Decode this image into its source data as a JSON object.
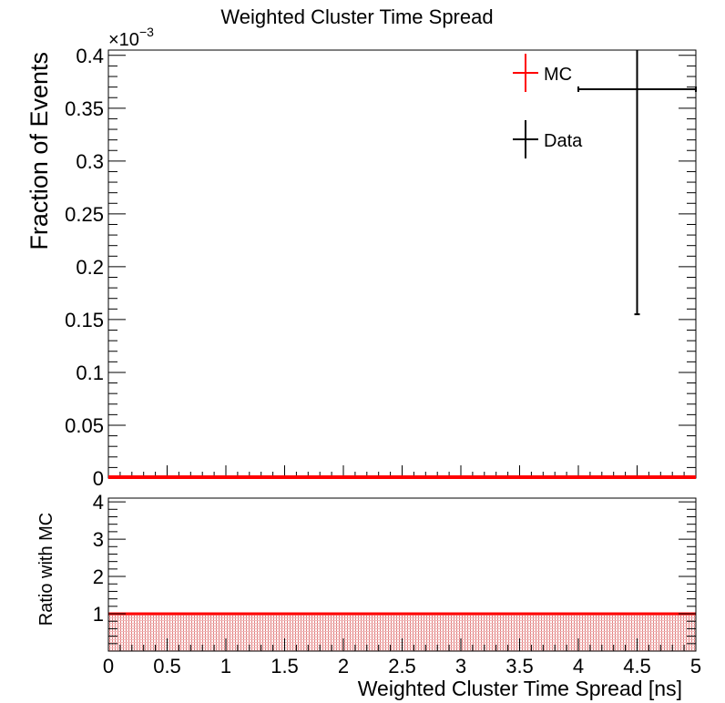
{
  "title": "Weighted Cluster Time Spread",
  "chart_data": [
    {
      "type": "scatter",
      "panel": "main",
      "title": "Weighted Cluster Time Spread",
      "ylabel": "Fraction of Events",
      "exponent_label": "×10",
      "exponent_power": "−3",
      "xlim": [
        0,
        5
      ],
      "ylim": [
        0,
        0.405
      ],
      "y_ticks": [
        0,
        0.05,
        0.1,
        0.15,
        0.2,
        0.25,
        0.3,
        0.35,
        0.4
      ],
      "y_tick_labels": [
        "0",
        "0.05",
        "0.1",
        "0.15",
        "0.2",
        "0.25",
        "0.3",
        "0.35",
        "0.4"
      ],
      "legend": {
        "placement": "top-right",
        "entries": [
          "MC",
          "Data"
        ]
      },
      "grid": false,
      "series": [
        {
          "name": "MC",
          "color": "#ff0000",
          "points": [
            {
              "x": 2.5,
              "xerr": 2.5,
              "y": 0
            }
          ]
        },
        {
          "name": "Data",
          "color": "#000000",
          "points": [
            {
              "x": 4.5,
              "xerr": 0.5,
              "y": 0.368,
              "yerr": 0.213
            }
          ]
        }
      ]
    },
    {
      "type": "area",
      "panel": "ratio",
      "ylabel": "Ratio with MC",
      "xlabel": "Weighted Cluster Time Spread [ns]",
      "xlim": [
        0,
        5
      ],
      "ylim": [
        0,
        4.1
      ],
      "x_ticks": [
        0,
        0.5,
        1,
        1.5,
        2,
        2.5,
        3,
        3.5,
        4,
        4.5,
        5
      ],
      "x_tick_labels": [
        "0",
        "0.5",
        "1",
        "1.5",
        "2",
        "2.5",
        "3",
        "3.5",
        "4",
        "4.5",
        "5"
      ],
      "y_ticks": [
        1,
        2,
        3,
        4
      ],
      "y_tick_labels": [
        "1",
        "2",
        "3",
        "4"
      ],
      "grid": false,
      "series": [
        {
          "name": "MC",
          "color": "#ff0000",
          "x": [
            0,
            5
          ],
          "values": [
            1,
            1
          ],
          "band": [
            0,
            1
          ]
        }
      ]
    }
  ]
}
